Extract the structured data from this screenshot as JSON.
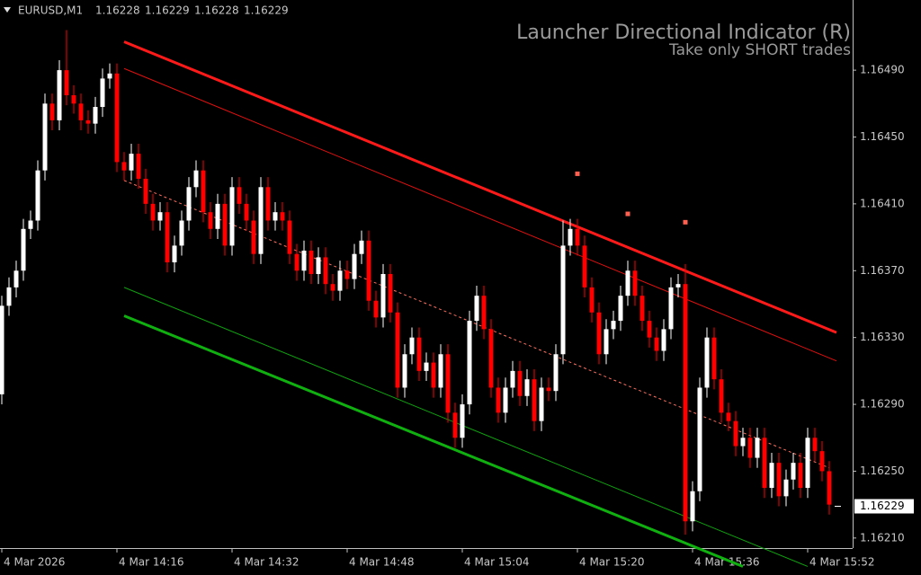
{
  "chart_data": {
    "type": "candlestick",
    "symbol": "EURUSD,M1",
    "quote": [
      1.16228,
      1.16229,
      1.16228,
      1.16229
    ],
    "title": "Launcher Directional Indicator (R)",
    "subtitle": "Take only SHORT trades",
    "last_price": 1.16229,
    "bull_color": "#ffffff",
    "bear_color": "#ff0000",
    "xlim": [
      -0.25,
      118.25
    ],
    "ylim": [
      1.16204,
      1.16532
    ],
    "xticks": [
      {
        "value": 0,
        "label": "4 Mar 2026"
      },
      {
        "value": 16,
        "label": "4 Mar 14:16"
      },
      {
        "value": 32,
        "label": "4 Mar 14:32"
      },
      {
        "value": 48,
        "label": "4 Mar 14:48"
      },
      {
        "value": 64,
        "label": "4 Mar 15:04"
      },
      {
        "value": 80,
        "label": "4 Mar 15:20"
      },
      {
        "value": 96,
        "label": "4 Mar 15:36"
      },
      {
        "value": 112,
        "label": "4 Mar 15:52"
      }
    ],
    "yticks": [
      {
        "value": 1.1649,
        "label": "1.16490"
      },
      {
        "value": 1.1645,
        "label": "1.16450"
      },
      {
        "value": 1.1641,
        "label": "1.16410"
      },
      {
        "value": 1.1637,
        "label": "1.16370"
      },
      {
        "value": 1.1633,
        "label": "1.16330"
      },
      {
        "value": 1.1629,
        "label": "1.16290"
      },
      {
        "value": 1.1625,
        "label": "1.16250"
      },
      {
        "value": 1.1621,
        "label": "1.16210"
      }
    ],
    "x": [
      0,
      1,
      2,
      3,
      4,
      5,
      6,
      7,
      8,
      9,
      10,
      11,
      12,
      13,
      14,
      15,
      16,
      17,
      18,
      19,
      20,
      21,
      22,
      23,
      24,
      25,
      26,
      27,
      28,
      29,
      30,
      31,
      32,
      33,
      34,
      35,
      36,
      37,
      38,
      39,
      40,
      41,
      42,
      43,
      44,
      45,
      46,
      47,
      48,
      49,
      50,
      51,
      52,
      53,
      54,
      55,
      56,
      57,
      58,
      59,
      60,
      61,
      62,
      63,
      64,
      65,
      66,
      67,
      68,
      69,
      70,
      71,
      72,
      73,
      74,
      75,
      76,
      77,
      78,
      79,
      80,
      81,
      82,
      83,
      84,
      85,
      86,
      87,
      88,
      89,
      90,
      91,
      92,
      93,
      94,
      95,
      96,
      97,
      98,
      99,
      100,
      101,
      102,
      103,
      104,
      105,
      106,
      107,
      108,
      109,
      110,
      111,
      112,
      113,
      114,
      115
    ],
    "open": [
      1.16296,
      1.16349,
      1.1636,
      1.1637,
      1.16395,
      1.164,
      1.1643,
      1.1647,
      1.1646,
      1.1649,
      1.16475,
      1.1647,
      1.1646,
      1.16458,
      1.16468,
      1.16485,
      1.16488,
      1.16435,
      1.1643,
      1.1644,
      1.16425,
      1.1641,
      1.164,
      1.16405,
      1.16375,
      1.16385,
      1.164,
      1.1642,
      1.1643,
      1.16405,
      1.16395,
      1.1641,
      1.16385,
      1.1642,
      1.1641,
      1.164,
      1.1638,
      1.1642,
      1.164,
      1.16405,
      1.164,
      1.1638,
      1.1637,
      1.16382,
      1.16368,
      1.16378,
      1.16362,
      1.16358,
      1.1637,
      1.16365,
      1.1638,
      1.16388,
      1.16352,
      1.16342,
      1.16368,
      1.16345,
      1.163,
      1.1632,
      1.1633,
      1.1631,
      1.16315,
      1.163,
      1.1632,
      1.16285,
      1.1627,
      1.1629,
      1.1634,
      1.16355,
      1.16335,
      1.163,
      1.16285,
      1.163,
      1.1631,
      1.16295,
      1.16305,
      1.1628,
      1.163,
      1.16298,
      1.1632,
      1.16385,
      1.16395,
      1.16385,
      1.1636,
      1.16345,
      1.1632,
      1.16335,
      1.1634,
      1.16355,
      1.1637,
      1.16355,
      1.1634,
      1.1633,
      1.16322,
      1.16335,
      1.1636,
      1.16362,
      1.1622,
      1.16238,
      1.163,
      1.1633,
      1.16305,
      1.16285,
      1.1628,
      1.16265,
      1.1627,
      1.16258,
      1.1627,
      1.1624,
      1.16255,
      1.16235,
      1.16245,
      1.16255,
      1.1624,
      1.1627,
      1.16262,
      1.1625
    ],
    "high": [
      1.16355,
      1.16366,
      1.16376,
      1.16401,
      1.16406,
      1.16436,
      1.16476,
      1.16476,
      1.16496,
      1.16514,
      1.16481,
      1.16476,
      1.16466,
      1.16474,
      1.16491,
      1.16494,
      1.16494,
      1.16441,
      1.16446,
      1.16446,
      1.16431,
      1.16416,
      1.16411,
      1.16411,
      1.16391,
      1.16406,
      1.16426,
      1.16436,
      1.16436,
      1.16411,
      1.16416,
      1.16416,
      1.16426,
      1.16426,
      1.16416,
      1.16406,
      1.16426,
      1.16426,
      1.16411,
      1.16411,
      1.16406,
      1.16386,
      1.16388,
      1.16388,
      1.16384,
      1.16384,
      1.16368,
      1.16376,
      1.16376,
      1.16386,
      1.16394,
      1.16394,
      1.16358,
      1.16374,
      1.16374,
      1.16351,
      1.16326,
      1.16336,
      1.16336,
      1.16321,
      1.16321,
      1.16326,
      1.16326,
      1.16291,
      1.16296,
      1.16346,
      1.16361,
      1.16361,
      1.16341,
      1.16306,
      1.16306,
      1.16316,
      1.16316,
      1.16311,
      1.16311,
      1.16306,
      1.16306,
      1.16326,
      1.164,
      1.16401,
      1.16401,
      1.16391,
      1.16366,
      1.16351,
      1.16341,
      1.16346,
      1.16361,
      1.16376,
      1.16376,
      1.16361,
      1.16346,
      1.16336,
      1.16341,
      1.16366,
      1.16368,
      1.16374,
      1.16244,
      1.16306,
      1.16336,
      1.16336,
      1.16311,
      1.16291,
      1.16286,
      1.16276,
      1.16276,
      1.16276,
      1.16276,
      1.16261,
      1.16261,
      1.16251,
      1.16261,
      1.16261,
      1.16276,
      1.16276,
      1.16268,
      1.16256
    ],
    "low": [
      1.1629,
      1.16343,
      1.16354,
      1.16364,
      1.16389,
      1.16394,
      1.16424,
      1.16454,
      1.16454,
      1.16469,
      1.16464,
      1.16454,
      1.16452,
      1.16452,
      1.16462,
      1.16479,
      1.16429,
      1.16424,
      1.16424,
      1.16419,
      1.16404,
      1.16394,
      1.16394,
      1.16369,
      1.16369,
      1.16379,
      1.16394,
      1.16414,
      1.16399,
      1.16389,
      1.16389,
      1.16379,
      1.16379,
      1.16404,
      1.16394,
      1.16374,
      1.16374,
      1.16394,
      1.16394,
      1.16394,
      1.16374,
      1.16364,
      1.16364,
      1.16362,
      1.16362,
      1.16356,
      1.16352,
      1.16352,
      1.16359,
      1.16359,
      1.16374,
      1.16346,
      1.16336,
      1.16336,
      1.16339,
      1.16294,
      1.16294,
      1.16314,
      1.16304,
      1.16304,
      1.16294,
      1.16294,
      1.16279,
      1.16264,
      1.16264,
      1.16284,
      1.16334,
      1.16329,
      1.16294,
      1.16279,
      1.16279,
      1.16294,
      1.16289,
      1.16289,
      1.16274,
      1.16274,
      1.16292,
      1.16292,
      1.16314,
      1.16379,
      1.16379,
      1.16354,
      1.16339,
      1.16314,
      1.16314,
      1.16329,
      1.16334,
      1.16349,
      1.16349,
      1.16334,
      1.16324,
      1.16316,
      1.16316,
      1.16329,
      1.16354,
      1.16212,
      1.16214,
      1.16232,
      1.16294,
      1.16299,
      1.16279,
      1.16274,
      1.16259,
      1.16259,
      1.16252,
      1.16252,
      1.16234,
      1.16234,
      1.16229,
      1.16229,
      1.16239,
      1.16234,
      1.16234,
      1.16256,
      1.16244,
      1.16224
    ],
    "close": [
      1.16349,
      1.1636,
      1.1637,
      1.16395,
      1.164,
      1.1643,
      1.1647,
      1.1646,
      1.1649,
      1.16475,
      1.1647,
      1.1646,
      1.16458,
      1.16468,
      1.16485,
      1.16488,
      1.16435,
      1.1643,
      1.1644,
      1.16425,
      1.1641,
      1.164,
      1.16405,
      1.16375,
      1.16385,
      1.164,
      1.1642,
      1.1643,
      1.16405,
      1.16395,
      1.1641,
      1.16385,
      1.1642,
      1.1641,
      1.164,
      1.1638,
      1.1642,
      1.164,
      1.16405,
      1.164,
      1.1638,
      1.1637,
      1.16382,
      1.16368,
      1.16378,
      1.16362,
      1.16358,
      1.1637,
      1.16365,
      1.1638,
      1.16388,
      1.16352,
      1.16342,
      1.16368,
      1.16345,
      1.163,
      1.1632,
      1.1633,
      1.1631,
      1.16315,
      1.163,
      1.1632,
      1.16285,
      1.1627,
      1.1629,
      1.1634,
      1.16355,
      1.16335,
      1.163,
      1.16285,
      1.163,
      1.1631,
      1.16295,
      1.16305,
      1.1628,
      1.163,
      1.16298,
      1.1632,
      1.16385,
      1.16395,
      1.16385,
      1.1636,
      1.16345,
      1.1632,
      1.16335,
      1.1634,
      1.16355,
      1.1637,
      1.16355,
      1.1634,
      1.1633,
      1.16322,
      1.16335,
      1.1636,
      1.16362,
      1.1622,
      1.16238,
      1.163,
      1.1633,
      1.16305,
      1.16285,
      1.1628,
      1.16265,
      1.1627,
      1.16258,
      1.1627,
      1.1624,
      1.16255,
      1.16235,
      1.16245,
      1.16255,
      1.1624,
      1.1627,
      1.16262,
      1.1625,
      1.1623
    ],
    "overlays": [
      {
        "color": "#ff1a1a",
        "width": 3,
        "dashed": false,
        "x": [
          17,
          116
        ],
        "values": [
          1.16507,
          1.16333
        ]
      },
      {
        "color": "#e01010",
        "width": 1,
        "dashed": false,
        "x": [
          17,
          116
        ],
        "values": [
          1.16491,
          1.16316
        ]
      },
      {
        "color": "#ff7060",
        "width": 1,
        "dashed": true,
        "x": [
          17,
          115
        ],
        "values": [
          1.16424,
          1.16252
        ]
      },
      {
        "color": "#10a010",
        "width": 1,
        "dashed": false,
        "x": [
          17,
          112
        ],
        "values": [
          1.1636,
          1.16193
        ]
      },
      {
        "color": "#10b010",
        "width": 3,
        "dashed": false,
        "x": [
          17,
          103
        ],
        "values": [
          1.16343,
          1.16193
        ]
      }
    ],
    "signals": {
      "color": "#ff6050",
      "x": [
        80,
        87,
        95
      ],
      "values": [
        1.16428,
        1.16404,
        1.16399
      ]
    }
  }
}
